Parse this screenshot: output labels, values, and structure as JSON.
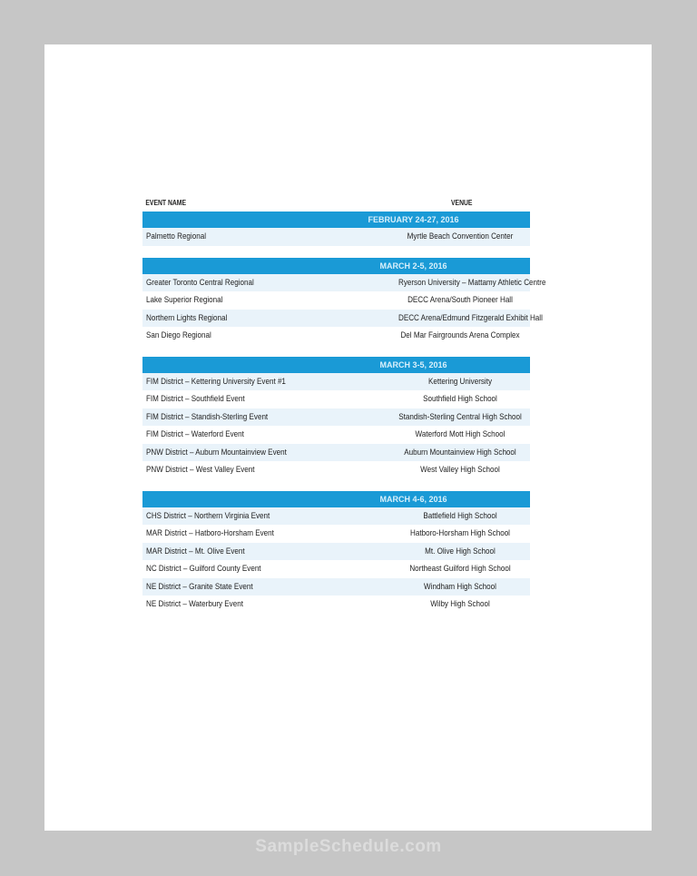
{
  "table": {
    "headers": {
      "event": "EVENT NAME",
      "venue": "VENUE"
    },
    "groups": [
      {
        "date": "FEBRUARY 24-27, 2016",
        "rows": [
          {
            "event": "Palmetto Regional",
            "venue": "Myrtle Beach Convention Center"
          }
        ]
      },
      {
        "date": "MARCH 2-5, 2016",
        "rows": [
          {
            "event": "Greater Toronto Central Regional",
            "venue": "Ryerson University – Mattamy Athletic Centre"
          },
          {
            "event": "Lake Superior Regional",
            "venue": "DECC Arena/South Pioneer Hall"
          },
          {
            "event": "Northern Lights Regional",
            "venue": "DECC Arena/Edmund Fitzgerald Exhibit Hall"
          },
          {
            "event": "San Diego Regional",
            "venue": "Del Mar Fairgrounds Arena Complex"
          }
        ]
      },
      {
        "date": "MARCH 3-5, 2016",
        "rows": [
          {
            "event": "FIM District – Kettering University Event #1",
            "venue": "Kettering University"
          },
          {
            "event": "FIM District – Southfield Event",
            "venue": "Southfield High School"
          },
          {
            "event": "FIM District – Standish-Sterling Event",
            "venue": "Standish-Sterling Central High School"
          },
          {
            "event": "FIM District – Waterford Event",
            "venue": "Waterford Mott High School"
          },
          {
            "event": "PNW District – Auburn Mountainview Event",
            "venue": "Auburn Mountainview High School"
          },
          {
            "event": "PNW District – West Valley Event",
            "venue": "West Valley High School"
          }
        ]
      },
      {
        "date": "MARCH 4-6, 2016",
        "rows": [
          {
            "event": "CHS District – Northern Virginia Event",
            "venue": "Battlefield High School"
          },
          {
            "event": "MAR District – Hatboro-Horsham Event",
            "venue": "Hatboro-Horsham High School"
          },
          {
            "event": "MAR District – Mt. Olive Event",
            "venue": "Mt. Olive High School"
          },
          {
            "event": "NC District – Guilford County Event",
            "venue": "Northeast Guilford High School"
          },
          {
            "event": "NE District – Granite State Event",
            "venue": "Windham High School"
          },
          {
            "event": "NE District – Waterbury Event",
            "venue": "Wilby High School"
          }
        ]
      }
    ]
  },
  "colors": {
    "date_bar": "#1a9ad6",
    "row_alt": "#e9f3fa"
  },
  "watermark": "SampleSchedule.com"
}
